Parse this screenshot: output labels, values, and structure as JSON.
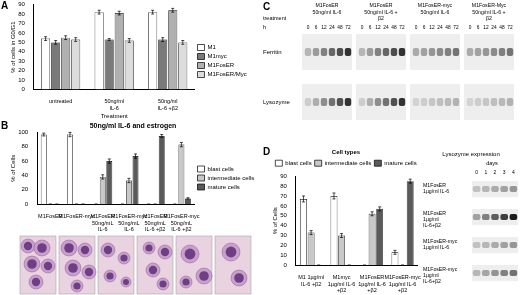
{
  "chart_data": [
    {
      "panel": "A",
      "type": "bar",
      "y_label": "% of cells in G0/G1",
      "x_label": "Treatment",
      "categories": [
        "untreated",
        "50ng/ml IL-6",
        "50ng/ml IL-6 +β2"
      ],
      "series": [
        {
          "name": "M1",
          "color": "#ffffff",
          "values": [
            54,
            82,
            82
          ],
          "errors": [
            2,
            2,
            2
          ]
        },
        {
          "name": "M1myc",
          "color": "#7a7a7a",
          "values": [
            50,
            53,
            53
          ],
          "errors": [
            2,
            1,
            2
          ]
        },
        {
          "name": "M1FosER",
          "color": "#b0b0b0",
          "values": [
            55,
            81,
            84
          ],
          "errors": [
            2,
            2,
            2
          ]
        },
        {
          "name": "M1FosER/Myc",
          "color": "#dcdcdc",
          "values": [
            53,
            52,
            50
          ],
          "errors": [
            2,
            2,
            2
          ]
        }
      ],
      "ylim": [
        0,
        90
      ],
      "yticks": [
        0,
        10,
        20,
        30,
        40,
        50,
        60,
        70,
        80,
        90
      ],
      "grid": false,
      "legend": "right"
    },
    {
      "panel": "B",
      "type": "bar",
      "title": "50ng/ml IL-6 and estrogen",
      "y_label": "% of Cells",
      "categories": [
        "M1FosER",
        "M1FosER-myc",
        "M1FosER 50ng/mL IL-6",
        "M1FosER-myc 50ng/mL IL-6",
        "M1FosER 50ng/mL IL-6 +β2",
        "M1FosER-myc 50ng/mL IL-6 +β2"
      ],
      "series": [
        {
          "name": "blast cells",
          "color": "#ffffff",
          "values": [
            97,
            97,
            0,
            0,
            0,
            0
          ],
          "errors": [
            2,
            3,
            0,
            0,
            0,
            0
          ]
        },
        {
          "name": "intermediate cells",
          "color": "#c8c8c8",
          "values": [
            0,
            0,
            38,
            33,
            0,
            83
          ],
          "errors": [
            0,
            0,
            3,
            3,
            0,
            3
          ]
        },
        {
          "name": "mature cells",
          "color": "#5a5a5a",
          "values": [
            0,
            0,
            60,
            67,
            95,
            8
          ],
          "errors": [
            0,
            0,
            3,
            3,
            2,
            1
          ]
        }
      ],
      "ylim": [
        0,
        100
      ],
      "yticks": [
        0,
        20,
        40,
        60,
        80,
        100
      ],
      "grid": false,
      "legend": "right"
    },
    {
      "panel": "D",
      "type": "bar",
      "y_label": "% of Cells",
      "legend_title": "Cell types",
      "categories": [
        "M1 1µg/ml IL-6 +β2",
        "M1myc 1µg/ml IL-6 +β2",
        "M1FosER 1µg/ml IL-6 +β2",
        "M1FosER-myc 1µg/ml IL-6 +β2"
      ],
      "series": [
        {
          "name": "blast cells",
          "color": "#ffffff",
          "values": [
            67,
            70,
            0,
            13
          ],
          "errors": [
            3,
            3,
            0,
            2
          ]
        },
        {
          "name": "intermediate cells",
          "color": "#c8c8c8",
          "values": [
            33,
            30,
            52,
            0
          ],
          "errors": [
            2,
            2,
            2,
            0
          ]
        },
        {
          "name": "mature cells",
          "color": "#5a5a5a",
          "values": [
            0,
            0,
            57,
            85
          ],
          "errors": [
            0,
            0,
            2,
            2
          ]
        }
      ],
      "ylim": [
        0,
        90
      ],
      "yticks": [
        0,
        10,
        20,
        30,
        40,
        50,
        60,
        70,
        80,
        90
      ],
      "grid": false,
      "legend": "top"
    }
  ],
  "blots": [
    {
      "panel": "C",
      "treatment_label": "treatment",
      "time_label": "h",
      "groups": [
        {
          "label": "M1FosER 50ng/ml IL-6",
          "times": [
            0,
            6,
            12,
            24,
            48,
            72
          ]
        },
        {
          "label": "M1FosER 50ng/ml IL-6 + β2",
          "times": [
            0,
            6,
            12,
            24,
            48,
            72
          ]
        },
        {
          "label": "M1FosER-myc 50ng/ml IL-6",
          "times": [
            0,
            6,
            12,
            24,
            48,
            72
          ]
        },
        {
          "label": "M1FosER-Myc 50ng/ml IL-6 + β2",
          "times": [
            0,
            6,
            12,
            24,
            48,
            72
          ]
        }
      ],
      "rows": [
        "Ferritin",
        "Lysozyme"
      ]
    },
    {
      "title": "Lysozyme expression",
      "time_label": "days",
      "times": [
        0,
        1,
        2,
        3,
        4
      ],
      "rows": [
        "M1FosER 1µg/ml IL-6",
        "M1FosER 1µg/ml IL-6+β2",
        "M1FosER-myc 1µg/ml IL-6",
        "M1FosER-myc 1µg/ml IL-6+β2"
      ]
    }
  ]
}
